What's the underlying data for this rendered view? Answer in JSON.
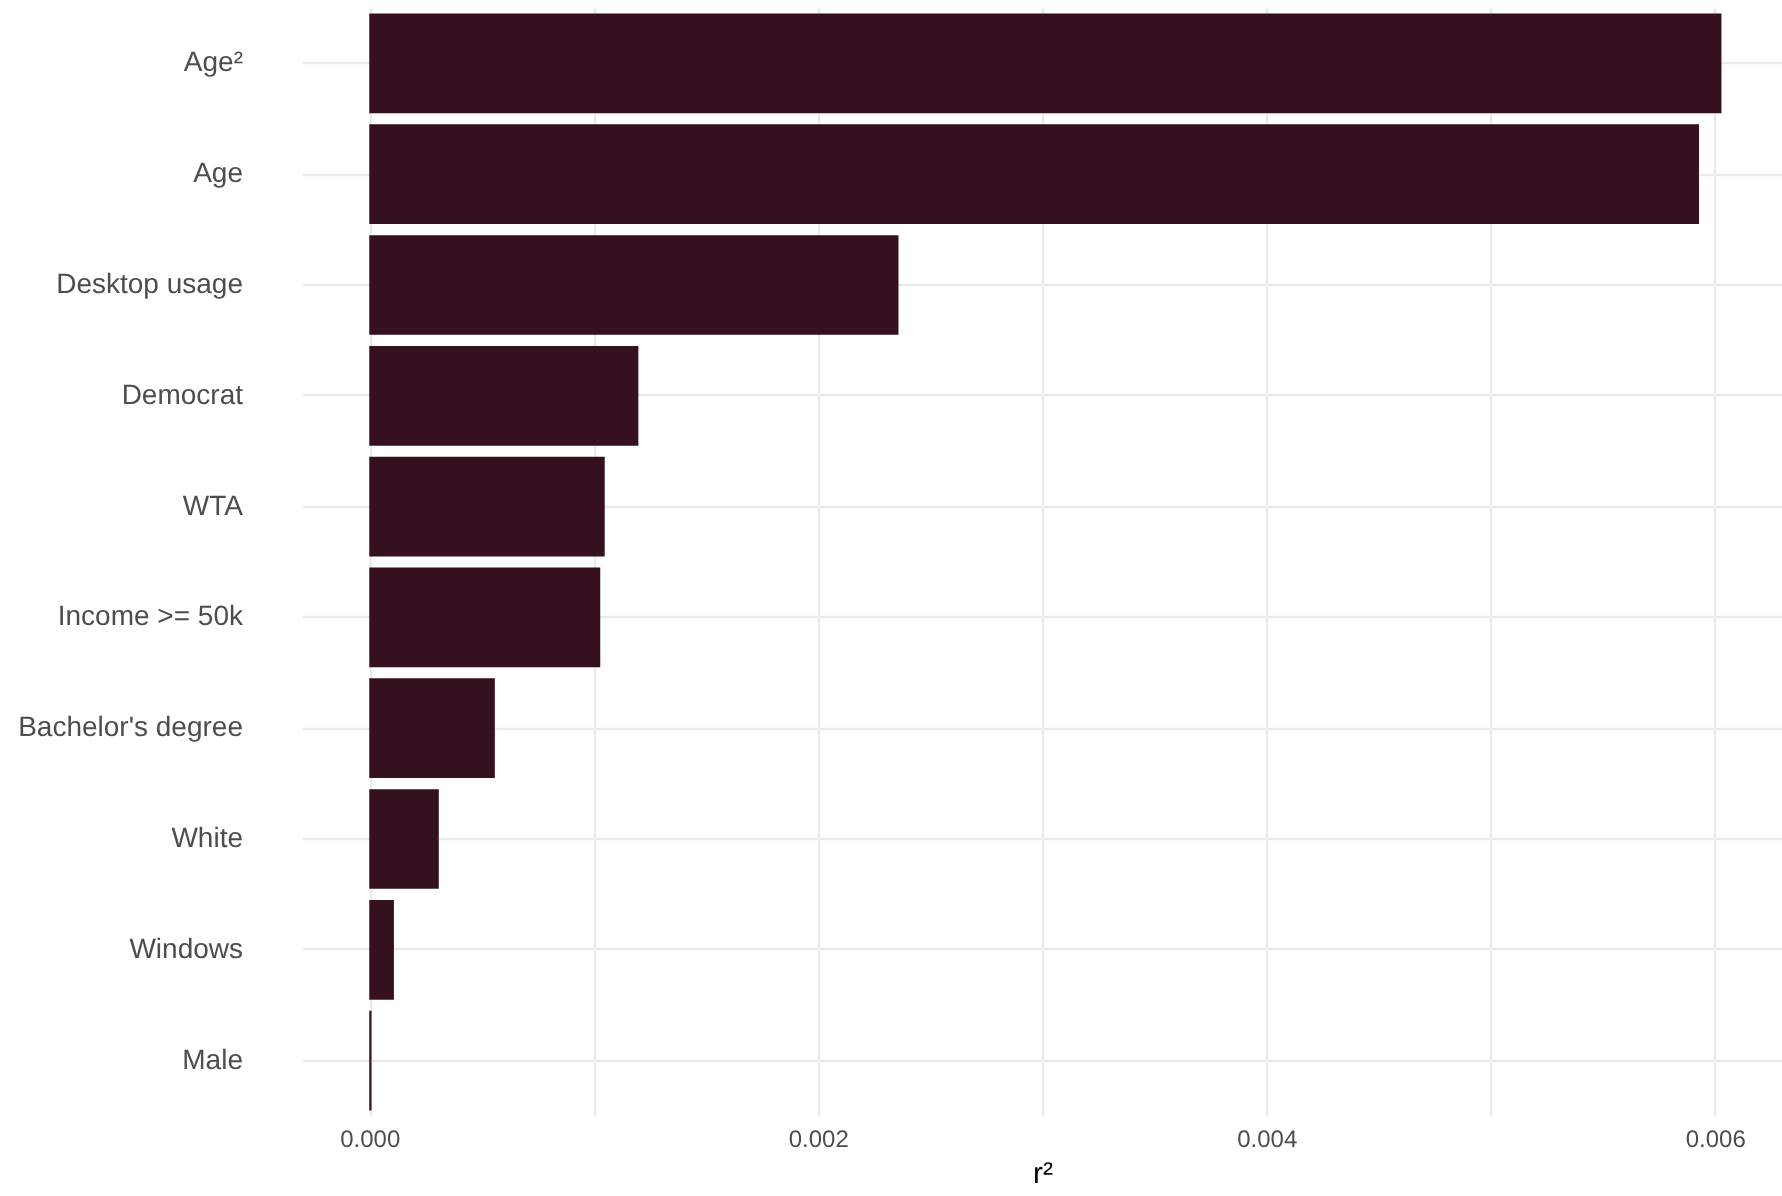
{
  "chart_data": {
    "type": "bar",
    "orientation": "horizontal",
    "xlabel": "r²",
    "categories": [
      "Age²",
      "Age",
      "Desktop usage",
      "Democrat",
      "WTA",
      "Income >= 50k",
      "Bachelor's degree",
      "White",
      "Windows",
      "Male"
    ],
    "values": [
      0.00603,
      0.00593,
      0.00236,
      0.0012,
      0.00105,
      0.00103,
      0.00056,
      0.00031,
      0.00011,
      1e-05
    ],
    "color": "#35101f",
    "xlim": [
      -0.0003,
      0.0063
    ],
    "xticks": [
      {
        "value": 0,
        "label": "0.000"
      },
      {
        "value": 0.001,
        "label": null
      },
      {
        "value": 0.002,
        "label": "0.002"
      },
      {
        "value": 0.003,
        "label": null
      },
      {
        "value": 0.004,
        "label": "0.004"
      },
      {
        "value": 0.005,
        "label": null
      },
      {
        "value": 0.006,
        "label": "0.006"
      }
    ],
    "grid": true
  }
}
